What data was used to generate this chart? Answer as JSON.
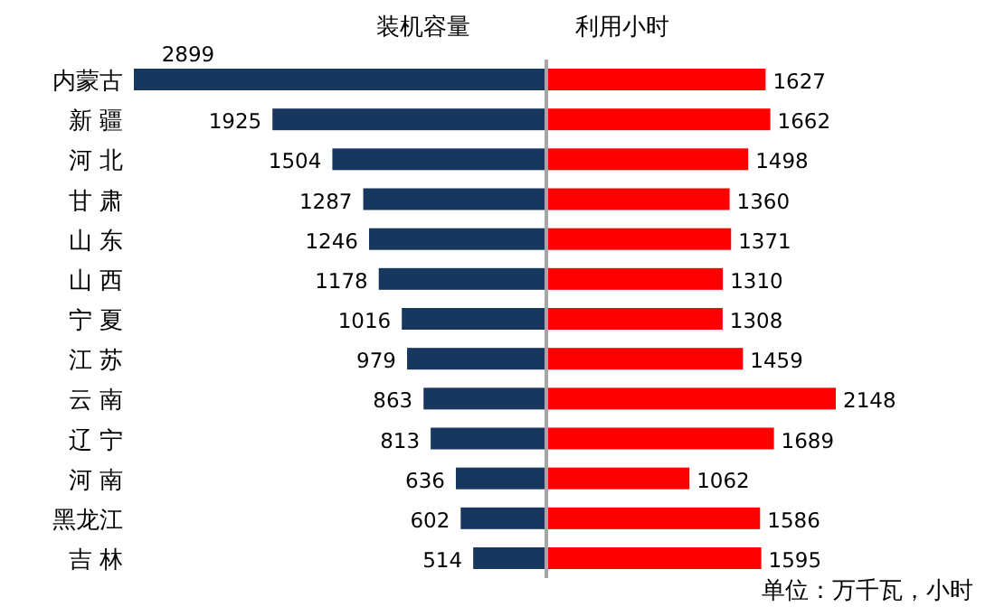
{
  "chart_data": [
    {
      "type": "bar",
      "orientation": "horizontal",
      "data_labels": true,
      "tick_labels": "y",
      "title": "装机容量",
      "categories": [
        "内蒙古",
        "新 疆",
        "河 北",
        "甘 肃",
        "山 东",
        "山 西",
        "宁 夏",
        "江 苏",
        "云 南",
        "辽 宁",
        "河 南",
        "黑龙江",
        "吉 林"
      ],
      "color": "#17375e",
      "values": [
        2899,
        1925,
        1504,
        1287,
        1246,
        1178,
        1016,
        979,
        863,
        813,
        636,
        602,
        514
      ]
    },
    {
      "type": "bar",
      "orientation": "horizontal",
      "data_labels": true,
      "tick_labels": false,
      "title": "利用小时",
      "categories": [
        null,
        null,
        null,
        null,
        null,
        null,
        null,
        null,
        null,
        null,
        null,
        null,
        null
      ],
      "color": "#ff0000",
      "values": [
        1627,
        1662,
        1498,
        1360,
        1371,
        1310,
        1308,
        1459,
        2148,
        1689,
        1062,
        1586,
        1595
      ],
      "annotations": [
        "单位：万千瓦，小时"
      ]
    }
  ]
}
